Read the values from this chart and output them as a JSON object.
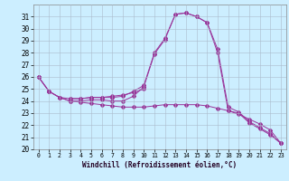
{
  "xlabel": "Windchill (Refroidissement éolien,°C)",
  "background_color": "#cceeff",
  "line_color": "#993399",
  "grid_color": "#aabbcc",
  "xlim": [
    -0.5,
    23.5
  ],
  "ylim": [
    20,
    32
  ],
  "yticks": [
    20,
    21,
    22,
    23,
    24,
    25,
    26,
    27,
    28,
    29,
    30,
    31
  ],
  "xticks": [
    0,
    1,
    2,
    3,
    4,
    5,
    6,
    7,
    8,
    9,
    10,
    11,
    12,
    13,
    14,
    15,
    16,
    17,
    18,
    19,
    20,
    21,
    22,
    23
  ],
  "line1_x": [
    0,
    1,
    2,
    3,
    4,
    5,
    6,
    7,
    8,
    9,
    10,
    11,
    12,
    13,
    14,
    15,
    16,
    17,
    18,
    19,
    20,
    21,
    22,
    23
  ],
  "line1_y": [
    26.0,
    24.8,
    24.3,
    24.2,
    24.2,
    24.3,
    24.3,
    24.3,
    24.4,
    24.8,
    25.3,
    28.0,
    29.2,
    31.2,
    31.3,
    31.0,
    30.5,
    28.3,
    23.5,
    23.1,
    22.3,
    21.8,
    21.3,
    20.5
  ],
  "line2_x": [
    0,
    1,
    2,
    3,
    4,
    5,
    6,
    7,
    8,
    9,
    10,
    11,
    12,
    13,
    14,
    15,
    16,
    17,
    18,
    19,
    20,
    21,
    22,
    23
  ],
  "line2_y": [
    26.0,
    24.8,
    24.3,
    24.0,
    24.0,
    24.1,
    24.1,
    24.0,
    24.0,
    24.4,
    25.2,
    27.9,
    29.1,
    31.2,
    31.3,
    31.0,
    30.5,
    28.0,
    23.2,
    23.0,
    22.2,
    21.7,
    21.2,
    20.5
  ],
  "line3_x": [
    0,
    1,
    2,
    3,
    4,
    5,
    6,
    7,
    8,
    9,
    10,
    11,
    12,
    13,
    14,
    15,
    16,
    17,
    18,
    19,
    20,
    21,
    22,
    23
  ],
  "line3_y": [
    26.0,
    24.8,
    24.3,
    24.0,
    23.9,
    23.8,
    23.7,
    23.6,
    23.5,
    23.5,
    23.5,
    23.6,
    23.7,
    23.7,
    23.7,
    23.7,
    23.6,
    23.4,
    23.2,
    22.9,
    22.5,
    22.1,
    21.6,
    20.5
  ],
  "line4_x": [
    3,
    4,
    5,
    6,
    7,
    8,
    9,
    10
  ],
  "line4_y": [
    24.2,
    24.2,
    24.3,
    24.3,
    24.4,
    24.5,
    24.7,
    25.0
  ],
  "tick_fontsize": 5.5,
  "xlabel_fontsize": 5.5
}
